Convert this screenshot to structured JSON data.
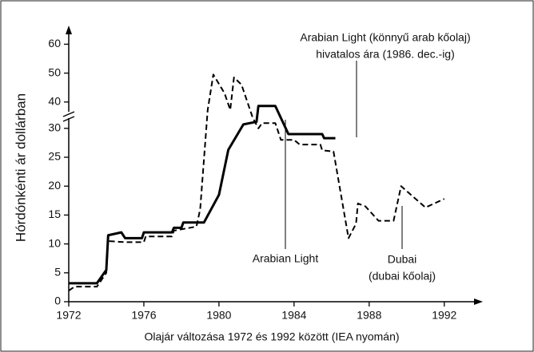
{
  "chart_data": {
    "type": "line",
    "y_label": "Hórdónkénti ár dollárban",
    "caption": "Olajár változása 1972 és 1992 között (IEA nyomán)",
    "xlim": [
      1972,
      1993.5
    ],
    "xticks": [
      1972,
      1976,
      1980,
      1984,
      1988,
      1992
    ],
    "ylim": [
      0,
      60
    ],
    "yticks": [
      0,
      5,
      10,
      15,
      20,
      25,
      30,
      40,
      50,
      60
    ],
    "axis_break": [
      30,
      40
    ],
    "series": [
      {
        "color": "#000000",
        "dashed": false,
        "x": [
          1972,
          1973.5,
          1974,
          1974.1,
          1974.8,
          1975,
          1975.9,
          1976,
          1977.5,
          1977.6,
          1978,
          1978.1,
          1979.2,
          1980,
          1980.5,
          1981.3,
          1982,
          1982.1,
          1983,
          1983.7,
          1985.5,
          1985.6,
          1986.2
        ],
        "values": [
          3.2,
          3.2,
          5.5,
          11.5,
          12,
          11,
          11,
          12,
          12,
          12.8,
          12.8,
          13.7,
          13.7,
          18.5,
          26.3,
          31.5,
          32.5,
          38.5,
          38.5,
          29,
          29,
          28.3,
          28.3
        ]
      },
      {
        "color": "#000000",
        "dashed": true,
        "x": [
          1972,
          1972.3,
          1973.5,
          1974,
          1974.1,
          1975,
          1976,
          1976.1,
          1977.5,
          1977.6,
          1978.8,
          1979,
          1979.4,
          1979.7,
          1980.3,
          1980.6,
          1980.8,
          1981.2,
          1981.8,
          1982.1,
          1982.3,
          1983,
          1983.3,
          1984,
          1984.3,
          1985.4,
          1985.5,
          1986.1,
          1986.9,
          1987.3,
          1987.4,
          1987.8,
          1988.5,
          1989.3,
          1989.7,
          1991,
          1992
        ],
        "values": [
          1.9,
          2.6,
          2.6,
          5,
          10.5,
          10.3,
          10.3,
          11.3,
          11.3,
          12.3,
          13,
          16,
          37,
          49.5,
          43,
          37,
          48.5,
          46,
          34,
          30,
          32,
          32,
          28,
          28,
          27.2,
          27.2,
          26.2,
          26,
          11,
          13.5,
          17,
          16.5,
          14,
          14,
          20,
          16.3,
          17.8
        ]
      }
    ],
    "annotations": [
      {
        "lines": [
          "Arabian Light (könnyű arab kőolaj)",
          "hivatalos ára (1986. dec.-ig)"
        ]
      },
      {
        "lines": [
          "Arabian Light"
        ]
      },
      {
        "lines": [
          "Dubai",
          "(dubai kőolaj)"
        ]
      }
    ]
  }
}
